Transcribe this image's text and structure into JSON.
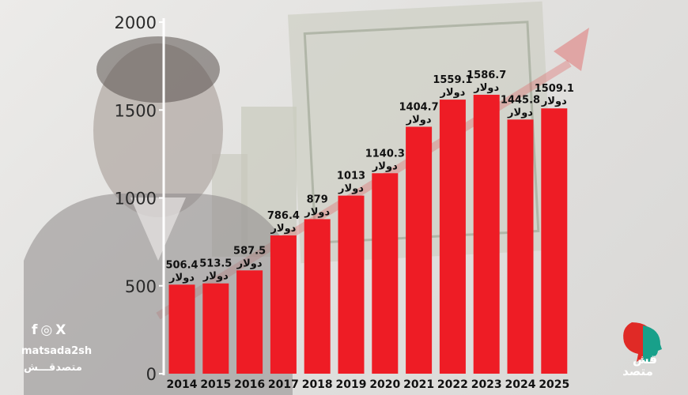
{
  "chart_data": {
    "type": "bar",
    "title": "",
    "xlabel": "",
    "ylabel": "",
    "ylim": [
      0,
      2000
    ],
    "yticks": [
      0,
      500,
      1000,
      1500,
      2000
    ],
    "grid": false,
    "categories": [
      "2014",
      "2015",
      "2016",
      "2017",
      "2018",
      "2019",
      "2020",
      "2021",
      "2022",
      "2023",
      "2024",
      "2025"
    ],
    "values": [
      506.4,
      513.5,
      587.5,
      786.4,
      879,
      1013,
      1140.3,
      1404.7,
      1559.1,
      1586.7,
      1445.8,
      1509.1
    ],
    "value_labels": [
      "506.4",
      "513.5",
      "587.5",
      "786.4",
      "879",
      "1013",
      "1140.3",
      "1404.7",
      "1559.1",
      "1586.7",
      "1445.8",
      "1509.1"
    ],
    "unit_label": "دولار",
    "bar_color": "#ee1c25"
  },
  "branding": {
    "handle": "matsada2sh",
    "name_ar": "متصدقـــش",
    "logo_text_top": "قش",
    "logo_text_bottom": "متصد",
    "social_icons": [
      "facebook-icon",
      "instagram-icon",
      "x-icon"
    ],
    "social_glyphs": [
      "f",
      "◎",
      "X"
    ]
  }
}
